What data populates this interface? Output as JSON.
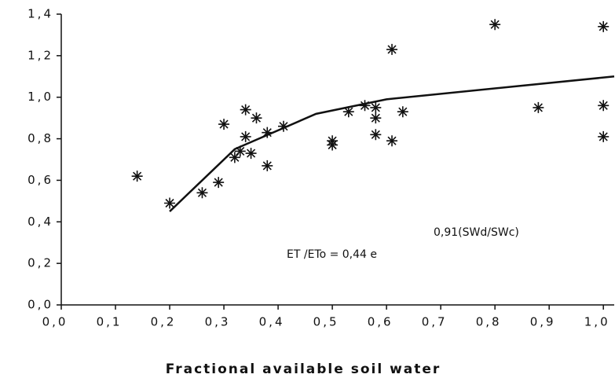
{
  "chart_data": {
    "type": "scatter",
    "xlabel": "Fractional available soil water",
    "annotations": [
      "ET /ETo = 0,44 e",
      "0,91(SWd/SWc)"
    ],
    "xlim": [
      0,
      1.02
    ],
    "ylim": [
      0,
      1.4
    ],
    "xticks": [
      {
        "value": 0,
        "label": "0,0"
      },
      {
        "value": 0.1,
        "label": "0,1"
      },
      {
        "value": 0.2,
        "label": "0,2"
      },
      {
        "value": 0.3,
        "label": "0,3"
      },
      {
        "value": 0.4,
        "label": "0,4"
      },
      {
        "value": 0.5,
        "label": "0,5"
      },
      {
        "value": 0.6,
        "label": "0,6"
      },
      {
        "value": 0.7,
        "label": "0,7"
      },
      {
        "value": 0.8,
        "label": "0,8"
      },
      {
        "value": 0.9,
        "label": "0,9"
      },
      {
        "value": 1,
        "label": "1,0"
      }
    ],
    "yticks": [
      {
        "value": 0,
        "label": "0,0"
      },
      {
        "value": 0.2,
        "label": "0,2"
      },
      {
        "value": 0.4,
        "label": "0,4"
      },
      {
        "value": 0.6,
        "label": "0,6"
      },
      {
        "value": 0.8,
        "label": "0,8"
      },
      {
        "value": 1,
        "label": "1,0"
      },
      {
        "value": 1.2,
        "label": "1,2"
      },
      {
        "value": 1.4,
        "label": "1,4"
      }
    ],
    "color": "#111111",
    "points": {
      "x": [
        0.14,
        0.2,
        0.26,
        0.29,
        0.3,
        0.32,
        0.33,
        0.34,
        0.34,
        0.35,
        0.36,
        0.38,
        0.38,
        0.41,
        0.5,
        0.5,
        0.53,
        0.56,
        0.58,
        0.58,
        0.58,
        0.61,
        0.61,
        0.63,
        0.8,
        0.88,
        1.0,
        1.0,
        1.0
      ],
      "y": [
        0.62,
        0.49,
        0.54,
        0.59,
        0.87,
        0.71,
        0.74,
        0.81,
        0.94,
        0.73,
        0.9,
        0.83,
        0.67,
        0.86,
        0.79,
        0.77,
        0.93,
        0.96,
        0.9,
        0.82,
        0.95,
        1.23,
        0.79,
        0.93,
        1.35,
        0.95,
        1.34,
        0.96,
        0.81
      ]
    },
    "fit_line": {
      "x": [
        0.2,
        0.32,
        0.47,
        0.6,
        1.02
      ],
      "y": [
        0.45,
        0.75,
        0.92,
        0.99,
        1.1
      ]
    }
  }
}
